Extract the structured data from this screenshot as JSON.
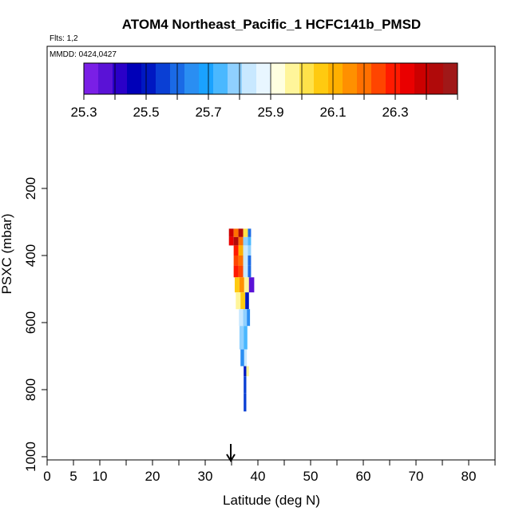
{
  "chart_data": {
    "type": "heatmap",
    "title": "ATOM4 Northeast_Pacific_1 HCFC141b_PMSD",
    "flights_label": "Flts: 1,2",
    "dates_label": "MMDD: 0424,0427",
    "xlabel": "Latitude (deg N)",
    "ylabel": "PSXC (mbar)",
    "xlim": [
      0,
      85
    ],
    "ylim": [
      1000,
      0
    ],
    "x_ticks": [
      0,
      5,
      10,
      20,
      30,
      40,
      50,
      60,
      70,
      80
    ],
    "x_minor_ticks": [
      0,
      5,
      10,
      15,
      20,
      25,
      30,
      35,
      40,
      45,
      50,
      55,
      60,
      65,
      70,
      75,
      80,
      85
    ],
    "y_ticks": [
      200,
      400,
      600,
      800,
      1000
    ],
    "arrow_latitude": 35,
    "colorbar": {
      "min": 25.3,
      "max": 26.5,
      "tick_values": [
        25.3,
        25.5,
        25.7,
        25.9,
        26.1,
        26.3
      ],
      "tick_labels": [
        "25.3",
        "25.5",
        "25.7",
        "25.9",
        "26.1",
        "26.3"
      ],
      "colors": [
        "#7a1fe6",
        "#5a12d6",
        "#2a00c8",
        "#0000b8",
        "#0018c2",
        "#0a3fd4",
        "#1a6ae6",
        "#2a8ef2",
        "#1aa2ff",
        "#4ab8ff",
        "#8fd0ff",
        "#c8e8ff",
        "#e8f6ff",
        "#ffffe0",
        "#fff59a",
        "#ffe24a",
        "#ffca10",
        "#ffb000",
        "#ff9000",
        "#ff7000",
        "#ff4500",
        "#ff1a00",
        "#ea0000",
        "#cc0000",
        "#b00a0a",
        "#a01818"
      ]
    },
    "cells": [
      {
        "lat": 34.5,
        "w": 0.9,
        "p_top": 320,
        "p_bot": 345,
        "value": 26.4
      },
      {
        "lat": 35.4,
        "w": 0.9,
        "p_top": 320,
        "p_bot": 345,
        "value": 26.2
      },
      {
        "lat": 36.3,
        "w": 0.9,
        "p_top": 320,
        "p_bot": 345,
        "value": 26.45
      },
      {
        "lat": 37.2,
        "w": 0.9,
        "p_top": 320,
        "p_bot": 345,
        "value": 26.0
      },
      {
        "lat": 38.1,
        "w": 0.6,
        "p_top": 320,
        "p_bot": 345,
        "value": 25.6
      },
      {
        "lat": 34.5,
        "w": 0.9,
        "p_top": 345,
        "p_bot": 370,
        "value": 26.35
      },
      {
        "lat": 35.4,
        "w": 0.9,
        "p_top": 345,
        "p_bot": 370,
        "value": 26.45
      },
      {
        "lat": 36.3,
        "w": 0.9,
        "p_top": 345,
        "p_bot": 370,
        "value": 26.2
      },
      {
        "lat": 37.2,
        "w": 0.9,
        "p_top": 345,
        "p_bot": 370,
        "value": 25.8
      },
      {
        "lat": 38.1,
        "w": 0.6,
        "p_top": 345,
        "p_bot": 370,
        "value": 25.75
      },
      {
        "lat": 35.4,
        "w": 0.9,
        "p_top": 370,
        "p_bot": 400,
        "value": 26.3
      },
      {
        "lat": 36.3,
        "w": 0.9,
        "p_top": 370,
        "p_bot": 400,
        "value": 26.1
      },
      {
        "lat": 37.2,
        "w": 0.9,
        "p_top": 370,
        "p_bot": 400,
        "value": 25.85
      },
      {
        "lat": 38.1,
        "w": 0.6,
        "p_top": 370,
        "p_bot": 400,
        "value": 25.8
      },
      {
        "lat": 35.4,
        "w": 0.9,
        "p_top": 400,
        "p_bot": 430,
        "value": 26.25
      },
      {
        "lat": 36.3,
        "w": 0.9,
        "p_top": 400,
        "p_bot": 430,
        "value": 26.2
      },
      {
        "lat": 37.2,
        "w": 0.9,
        "p_top": 400,
        "p_bot": 430,
        "value": 25.85
      },
      {
        "lat": 38.1,
        "w": 0.6,
        "p_top": 400,
        "p_bot": 430,
        "value": 25.6
      },
      {
        "lat": 35.4,
        "w": 0.9,
        "p_top": 430,
        "p_bot": 465,
        "value": 26.3
      },
      {
        "lat": 36.3,
        "w": 0.9,
        "p_top": 430,
        "p_bot": 465,
        "value": 26.25
      },
      {
        "lat": 37.2,
        "w": 0.9,
        "p_top": 430,
        "p_bot": 465,
        "value": 25.85
      },
      {
        "lat": 38.1,
        "w": 0.6,
        "p_top": 430,
        "p_bot": 465,
        "value": 25.6
      },
      {
        "lat": 35.6,
        "w": 0.9,
        "p_top": 465,
        "p_bot": 510,
        "value": 26.05
      },
      {
        "lat": 36.5,
        "w": 0.9,
        "p_top": 465,
        "p_bot": 510,
        "value": 26.15
      },
      {
        "lat": 37.4,
        "w": 0.9,
        "p_top": 465,
        "p_bot": 510,
        "value": 25.95
      },
      {
        "lat": 38.3,
        "w": 1.0,
        "p_top": 465,
        "p_bot": 510,
        "value": 25.35
      },
      {
        "lat": 35.8,
        "w": 0.9,
        "p_top": 510,
        "p_bot": 560,
        "value": 25.95
      },
      {
        "lat": 36.7,
        "w": 0.9,
        "p_top": 510,
        "p_bot": 560,
        "value": 26.05
      },
      {
        "lat": 37.6,
        "w": 0.7,
        "p_top": 510,
        "p_bot": 560,
        "value": 25.5
      },
      {
        "lat": 36.4,
        "w": 0.8,
        "p_top": 560,
        "p_bot": 610,
        "value": 25.85
      },
      {
        "lat": 37.2,
        "w": 0.7,
        "p_top": 560,
        "p_bot": 610,
        "value": 25.8
      },
      {
        "lat": 37.9,
        "w": 0.6,
        "p_top": 560,
        "p_bot": 610,
        "value": 25.65
      },
      {
        "lat": 36.5,
        "w": 0.8,
        "p_top": 610,
        "p_bot": 680,
        "value": 25.8
      },
      {
        "lat": 37.3,
        "w": 0.7,
        "p_top": 610,
        "p_bot": 680,
        "value": 25.75
      },
      {
        "lat": 36.7,
        "w": 0.7,
        "p_top": 680,
        "p_bot": 730,
        "value": 25.65
      },
      {
        "lat": 37.4,
        "w": 0.5,
        "p_top": 680,
        "p_bot": 730,
        "value": 25.85
      },
      {
        "lat": 37.3,
        "w": 0.5,
        "p_top": 730,
        "p_bot": 760,
        "value": 25.5
      },
      {
        "lat": 37.8,
        "w": 0.5,
        "p_top": 730,
        "p_bot": 760,
        "value": 25.95
      },
      {
        "lat": 37.3,
        "w": 0.5,
        "p_top": 760,
        "p_bot": 810,
        "value": 25.55
      },
      {
        "lat": 37.3,
        "w": 0.5,
        "p_top": 810,
        "p_bot": 865,
        "value": 25.55
      }
    ]
  }
}
